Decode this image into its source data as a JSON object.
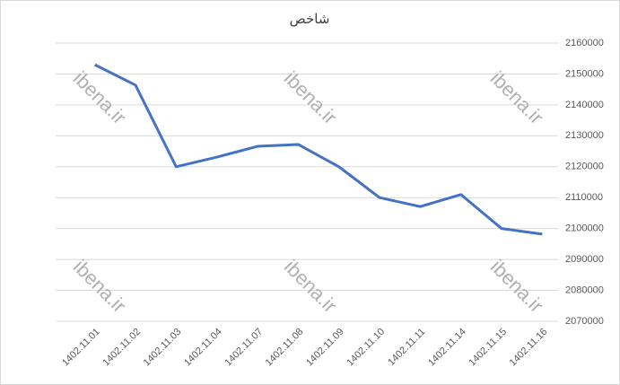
{
  "chart_data": {
    "type": "line",
    "title": "شاخص",
    "watermark": "ibena.ir",
    "categories": [
      "1402.11.01",
      "1402.11.02",
      "1402.11.03",
      "1402.11.04",
      "1402.11.07",
      "1402.11.08",
      "1402.11.09",
      "1402.11.10",
      "1402.11.11",
      "1402.11.14",
      "1402.11.15",
      "1402.11.16"
    ],
    "series": [
      {
        "name": "شاخص",
        "color": "#4472c4",
        "values": [
          2153000,
          2146400,
          2120000,
          2123100,
          2126600,
          2127200,
          2120000,
          2110000,
          2107100,
          2111000,
          2100000,
          2098200
        ]
      }
    ],
    "ylim": [
      2070000,
      2160000
    ],
    "yticks": [
      2070000,
      2080000,
      2090000,
      2100000,
      2110000,
      2120000,
      2130000,
      2140000,
      2150000,
      2160000
    ],
    "grid": true,
    "y_axis_side": "right"
  }
}
